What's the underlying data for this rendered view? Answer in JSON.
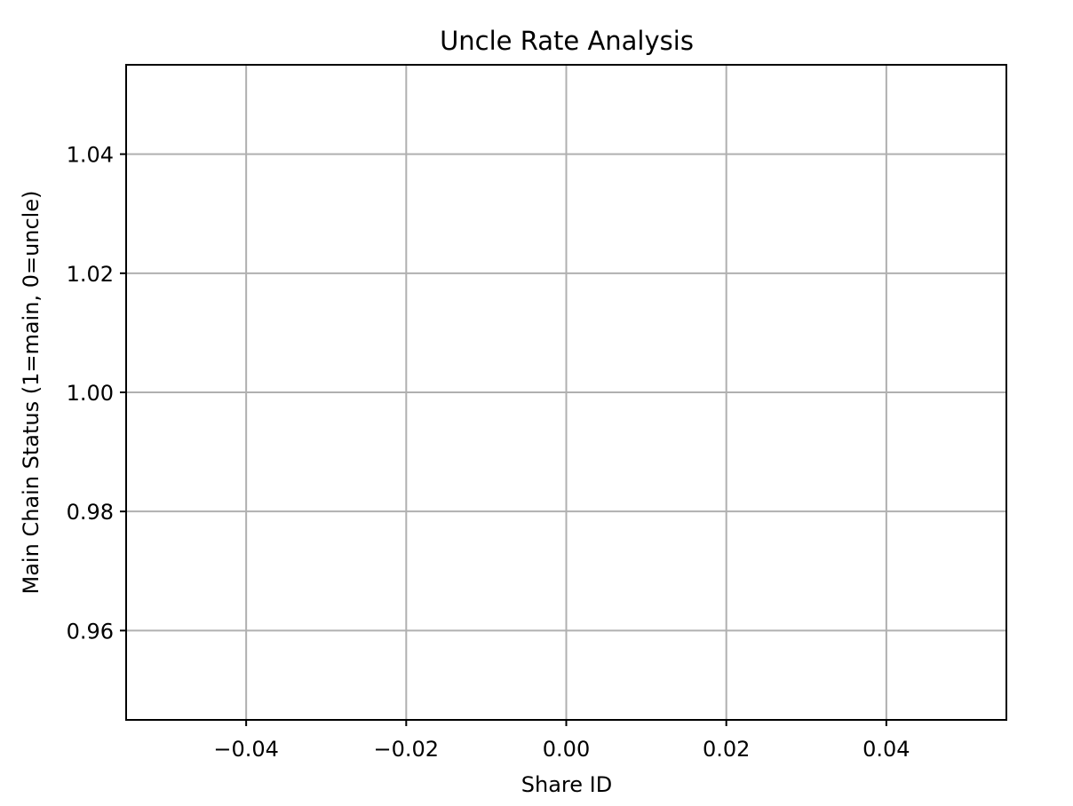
{
  "chart_data": {
    "type": "line",
    "title": "Uncle Rate Analysis",
    "xlabel": "Share ID",
    "ylabel": "Main Chain Status (1=main, 0=uncle)",
    "x": [],
    "series": [
      {
        "values": []
      }
    ],
    "xlim": [
      -0.055,
      0.055
    ],
    "ylim": [
      0.945,
      1.055
    ],
    "x_ticks": [
      -0.04,
      -0.02,
      0.0,
      0.02,
      0.04
    ],
    "x_tick_labels": [
      "−0.04",
      "−0.02",
      "0.00",
      "0.02",
      "0.04"
    ],
    "y_ticks": [
      0.96,
      0.98,
      1.0,
      1.02,
      1.04
    ],
    "y_tick_labels": [
      "0.96",
      "0.98",
      "1.00",
      "1.02",
      "1.04"
    ],
    "grid": true,
    "legend": "none"
  }
}
